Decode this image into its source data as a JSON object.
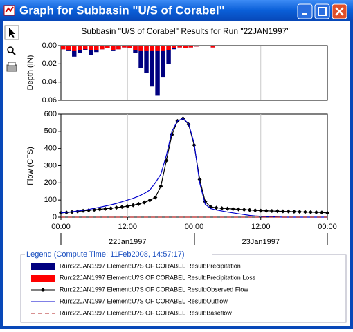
{
  "window": {
    "title": "Graph for Subbasin \"U/S of Corabel\""
  },
  "legend": {
    "title": "Legend (Compute Time: 11Feb2008, 14:57:17)"
  },
  "chart_data": [
    {
      "type": "bar",
      "title": "Subbasin \"U/S of Corabel\" Results for Run \"22JAN1997\"",
      "ylabel": "Depth (IN)",
      "inverted": true,
      "grid": true,
      "x": [
        0,
        1,
        2,
        3,
        4,
        5,
        6,
        7,
        8,
        9,
        10,
        11,
        12,
        13,
        14,
        15,
        16,
        17,
        18,
        19,
        20,
        21,
        22,
        23,
        24,
        25,
        26,
        27,
        28,
        29,
        30,
        31,
        32,
        33,
        34,
        35,
        36,
        37,
        38,
        39,
        40,
        41,
        42,
        43,
        44,
        45,
        46,
        47,
        48
      ],
      "ylim": [
        0,
        0.06
      ],
      "yticks": [
        {
          "value": 0,
          "label": "0.00"
        },
        {
          "value": 0.02,
          "label": "0.02"
        },
        {
          "value": 0.04,
          "label": "0.04"
        },
        {
          "value": 0.06,
          "label": "0.06"
        }
      ],
      "series": [
        {
          "name": "Run:22JAN1997 Element:U?S OF CORABEL Result:Precipitation",
          "color": "#000080",
          "values": [
            0.004,
            0.006,
            0.012,
            0.008,
            0.005,
            0.01,
            0.007,
            0.004,
            0.003,
            0.006,
            0.004,
            0.002,
            0.003,
            0.008,
            0.025,
            0.03,
            0.045,
            0.055,
            0.035,
            0.02,
            0.004,
            0.002,
            0.003,
            0.002,
            0.001,
            0,
            0,
            0.002,
            0,
            0,
            0,
            0,
            0,
            0,
            0,
            0,
            0,
            0,
            0,
            0,
            0,
            0,
            0,
            0,
            0,
            0,
            0,
            0,
            0
          ]
        },
        {
          "name": "Run:22JAN1997 Element:U?S OF CORABEL Result:Precipitation Loss",
          "color": "#ff0000",
          "values": [
            0.004,
            0.005,
            0.006,
            0.005,
            0.004,
            0.005,
            0.005,
            0.004,
            0.003,
            0.005,
            0.004,
            0.002,
            0.003,
            0.005,
            0.006,
            0.006,
            0.006,
            0.006,
            0.006,
            0.005,
            0.003,
            0.002,
            0.003,
            0.002,
            0.001,
            0,
            0,
            0.002,
            0,
            0,
            0,
            0,
            0,
            0,
            0,
            0,
            0,
            0,
            0,
            0,
            0,
            0,
            0,
            0,
            0,
            0,
            0,
            0,
            0
          ]
        }
      ]
    },
    {
      "type": "line",
      "ylabel": "Flow (CFS)",
      "grid": true,
      "x": [
        0,
        1,
        2,
        3,
        4,
        5,
        6,
        7,
        8,
        9,
        10,
        11,
        12,
        13,
        14,
        15,
        16,
        17,
        18,
        19,
        20,
        21,
        22,
        23,
        24,
        25,
        26,
        27,
        28,
        29,
        30,
        31,
        32,
        33,
        34,
        35,
        36,
        37,
        38,
        39,
        40,
        41,
        42,
        43,
        44,
        45,
        46,
        47,
        48
      ],
      "xlim": [
        0,
        48
      ],
      "ylim": [
        0,
        600
      ],
      "yticks": [
        0,
        100,
        200,
        300,
        400,
        500,
        600
      ],
      "xticks": [
        {
          "value": 0,
          "label": "00:00"
        },
        {
          "value": 12,
          "label": "12:00"
        },
        {
          "value": 24,
          "label": "00:00"
        },
        {
          "value": 36,
          "label": "12:00"
        },
        {
          "value": 48,
          "label": "00:00"
        }
      ],
      "date_labels": [
        "22Jan1997",
        "23Jan1997"
      ],
      "series": [
        {
          "name": "Run:22JAN1997 Element:U?S OF CORABEL Result:Observed Flow",
          "color": "#000000",
          "marker": "diamond",
          "values": [
            25,
            27,
            30,
            33,
            37,
            40,
            43,
            46,
            49,
            52,
            56,
            60,
            64,
            70,
            77,
            86,
            98,
            115,
            180,
            330,
            480,
            560,
            575,
            540,
            420,
            220,
            90,
            60,
            55,
            52,
            50,
            48,
            46,
            44,
            42,
            40,
            38,
            37,
            36,
            35,
            34,
            33,
            32,
            31,
            30,
            29,
            28,
            27,
            25
          ]
        },
        {
          "name": "Run:22JAN1997 Element:U?S OF CORABEL Result:Outflow",
          "color": "#0000cc",
          "values": [
            25,
            28,
            32,
            36,
            40,
            45,
            52,
            58,
            65,
            72,
            80,
            90,
            100,
            110,
            122,
            138,
            158,
            200,
            250,
            360,
            500,
            560,
            575,
            545,
            430,
            200,
            75,
            50,
            42,
            36,
            30,
            25,
            20,
            15,
            10,
            7,
            5,
            3,
            2,
            1,
            0,
            0,
            0,
            0,
            0,
            0,
            0,
            0,
            0
          ]
        },
        {
          "name": "Run:22JAN1997 Element:U?S OF CORABEL Result:Baseflow",
          "color": "#b22222",
          "dash": true,
          "values": [
            0,
            0,
            0,
            0,
            0,
            0,
            0,
            0,
            0,
            0,
            0,
            0,
            0,
            0,
            0,
            0,
            0,
            0,
            0,
            0,
            0,
            0,
            0,
            0,
            0,
            0,
            0,
            0,
            0,
            0,
            0,
            0,
            0,
            0,
            0,
            0,
            0,
            0,
            0,
            0,
            0,
            0,
            0,
            0,
            0,
            0,
            0,
            0,
            0
          ]
        }
      ]
    }
  ]
}
